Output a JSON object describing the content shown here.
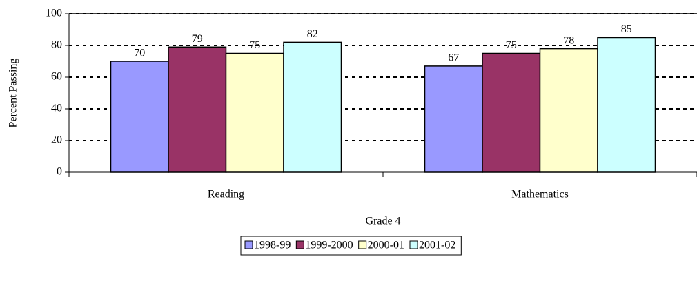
{
  "chart_data": {
    "type": "bar",
    "x_label": "Grade 4",
    "y_label": "Percent Passing",
    "categories": [
      "Reading",
      "Mathematics"
    ],
    "series": [
      {
        "name": "1998-99",
        "color": "#9999ff",
        "values": [
          70,
          67
        ]
      },
      {
        "name": "1999-2000",
        "color": "#993366",
        "values": [
          79,
          75
        ]
      },
      {
        "name": "2000-01",
        "color": "#ffffcc",
        "values": [
          75,
          78
        ]
      },
      {
        "name": "2001-02",
        "color": "#ccffff",
        "values": [
          82,
          85
        ]
      }
    ],
    "ylim": [
      0,
      100
    ],
    "yticks": [
      0,
      20,
      40,
      60,
      80,
      100
    ],
    "grid": true,
    "legend": "bottom"
  }
}
